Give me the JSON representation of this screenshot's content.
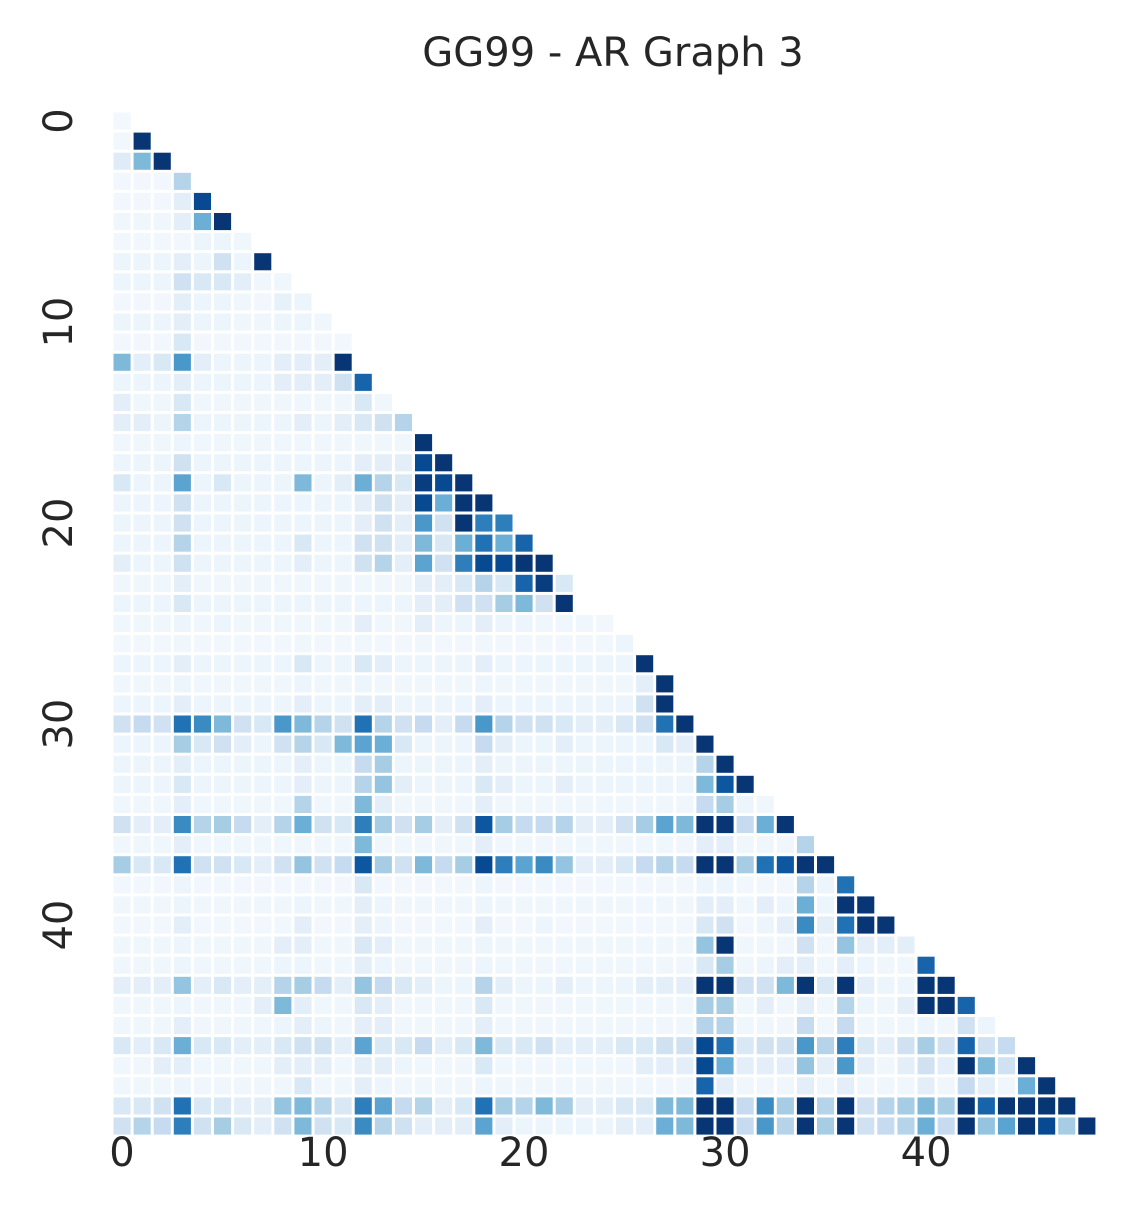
{
  "chart_data": {
    "type": "heatmap",
    "title": "GG99 - AR Graph 3",
    "n": 49,
    "mask": "lower-triangle",
    "colormap": "Blues",
    "colorbar": false,
    "x_ticks": [
      "0",
      "10",
      "20",
      "30",
      "40"
    ],
    "y_ticks": [
      "0",
      "10",
      "20",
      "30",
      "40"
    ],
    "xlabel": "",
    "ylabel": "",
    "value_scale": "0 = lightest, 1 = darkest (estimated intensity)",
    "rows": [
      [
        0.02
      ],
      [
        0.03,
        0.98
      ],
      [
        0.12,
        0.45,
        0.98
      ],
      [
        0.03,
        0.03,
        0.03,
        0.3
      ],
      [
        0.03,
        0.03,
        0.03,
        0.1,
        0.9
      ],
      [
        0.04,
        0.04,
        0.04,
        0.1,
        0.5,
        0.98
      ],
      [
        0.03,
        0.03,
        0.03,
        0.03,
        0.05,
        0.05,
        0.04
      ],
      [
        0.05,
        0.05,
        0.05,
        0.1,
        0.05,
        0.2,
        0.05,
        0.98
      ],
      [
        0.05,
        0.05,
        0.05,
        0.2,
        0.15,
        0.15,
        0.1,
        0.04,
        0.04
      ],
      [
        0.03,
        0.03,
        0.03,
        0.1,
        0.05,
        0.05,
        0.04,
        0.03,
        0.08,
        0.05
      ],
      [
        0.05,
        0.05,
        0.05,
        0.1,
        0.05,
        0.05,
        0.04,
        0.04,
        0.05,
        0.05,
        0.04
      ],
      [
        0.03,
        0.03,
        0.03,
        0.15,
        0.03,
        0.03,
        0.03,
        0.03,
        0.03,
        0.03,
        0.03,
        0.03
      ],
      [
        0.45,
        0.1,
        0.15,
        0.6,
        0.1,
        0.05,
        0.05,
        0.05,
        0.1,
        0.1,
        0.1,
        0.98
      ],
      [
        0.05,
        0.05,
        0.05,
        0.1,
        0.05,
        0.05,
        0.05,
        0.05,
        0.1,
        0.1,
        0.1,
        0.2,
        0.8
      ],
      [
        0.1,
        0.04,
        0.04,
        0.15,
        0.04,
        0.04,
        0.04,
        0.04,
        0.04,
        0.04,
        0.04,
        0.04,
        0.15,
        0.04
      ],
      [
        0.1,
        0.1,
        0.05,
        0.3,
        0.05,
        0.05,
        0.05,
        0.05,
        0.05,
        0.1,
        0.05,
        0.1,
        0.15,
        0.2,
        0.3
      ],
      [
        0.04,
        0.04,
        0.04,
        0.05,
        0.04,
        0.04,
        0.04,
        0.04,
        0.04,
        0.04,
        0.04,
        0.04,
        0.04,
        0.04,
        0.04,
        0.98
      ],
      [
        0.05,
        0.05,
        0.05,
        0.2,
        0.05,
        0.05,
        0.05,
        0.05,
        0.05,
        0.05,
        0.05,
        0.05,
        0.1,
        0.1,
        0.1,
        0.9,
        0.98
      ],
      [
        0.15,
        0.05,
        0.05,
        0.55,
        0.05,
        0.15,
        0.05,
        0.05,
        0.05,
        0.45,
        0.05,
        0.1,
        0.5,
        0.3,
        0.15,
        0.95,
        0.9,
        0.98
      ],
      [
        0.05,
        0.05,
        0.05,
        0.2,
        0.05,
        0.05,
        0.05,
        0.05,
        0.05,
        0.05,
        0.05,
        0.05,
        0.1,
        0.2,
        0.1,
        0.9,
        0.5,
        0.98,
        0.98
      ],
      [
        0.05,
        0.05,
        0.05,
        0.2,
        0.05,
        0.05,
        0.05,
        0.05,
        0.05,
        0.05,
        0.05,
        0.05,
        0.1,
        0.2,
        0.1,
        0.6,
        0.2,
        0.98,
        0.7,
        0.7
      ],
      [
        0.05,
        0.05,
        0.05,
        0.3,
        0.05,
        0.05,
        0.05,
        0.05,
        0.05,
        0.15,
        0.05,
        0.05,
        0.2,
        0.2,
        0.1,
        0.45,
        0.15,
        0.5,
        0.75,
        0.5,
        0.8
      ],
      [
        0.1,
        0.05,
        0.05,
        0.2,
        0.05,
        0.05,
        0.05,
        0.05,
        0.05,
        0.1,
        0.05,
        0.05,
        0.2,
        0.3,
        0.1,
        0.55,
        0.2,
        0.7,
        0.9,
        0.9,
        0.98,
        0.98
      ],
      [
        0.04,
        0.04,
        0.04,
        0.1,
        0.04,
        0.04,
        0.04,
        0.04,
        0.04,
        0.04,
        0.04,
        0.04,
        0.04,
        0.04,
        0.04,
        0.1,
        0.1,
        0.15,
        0.3,
        0.15,
        0.8,
        0.95,
        0.15
      ],
      [
        0.05,
        0.05,
        0.05,
        0.15,
        0.05,
        0.05,
        0.05,
        0.05,
        0.05,
        0.05,
        0.05,
        0.05,
        0.05,
        0.05,
        0.05,
        0.1,
        0.1,
        0.2,
        0.2,
        0.35,
        0.45,
        0.2,
        0.98
      ],
      [
        0.04,
        0.04,
        0.04,
        0.05,
        0.04,
        0.05,
        0.04,
        0.04,
        0.04,
        0.04,
        0.04,
        0.04,
        0.1,
        0.04,
        0.04,
        0.1,
        0.05,
        0.05,
        0.1,
        0.05,
        0.05,
        0.04,
        0.04,
        0.04,
        0.03
      ],
      [
        0.03,
        0.03,
        0.03,
        0.04,
        0.03,
        0.03,
        0.03,
        0.03,
        0.03,
        0.04,
        0.03,
        0.03,
        0.04,
        0.03,
        0.03,
        0.04,
        0.03,
        0.03,
        0.04,
        0.03,
        0.03,
        0.03,
        0.03,
        0.03,
        0.03,
        0.05
      ],
      [
        0.05,
        0.05,
        0.05,
        0.1,
        0.05,
        0.05,
        0.05,
        0.05,
        0.05,
        0.15,
        0.05,
        0.05,
        0.15,
        0.1,
        0.05,
        0.05,
        0.05,
        0.05,
        0.1,
        0.05,
        0.05,
        0.05,
        0.05,
        0.05,
        0.05,
        0.05,
        0.98
      ],
      [
        0.04,
        0.04,
        0.04,
        0.05,
        0.04,
        0.04,
        0.04,
        0.04,
        0.04,
        0.05,
        0.04,
        0.04,
        0.05,
        0.04,
        0.04,
        0.04,
        0.04,
        0.04,
        0.05,
        0.04,
        0.04,
        0.04,
        0.04,
        0.04,
        0.04,
        0.04,
        0.1,
        0.98
      ],
      [
        0.05,
        0.05,
        0.05,
        0.1,
        0.05,
        0.05,
        0.05,
        0.05,
        0.05,
        0.1,
        0.05,
        0.05,
        0.1,
        0.1,
        0.05,
        0.05,
        0.05,
        0.05,
        0.1,
        0.05,
        0.05,
        0.05,
        0.05,
        0.05,
        0.05,
        0.05,
        0.2,
        0.98
      ],
      [
        0.2,
        0.25,
        0.2,
        0.75,
        0.65,
        0.45,
        0.2,
        0.15,
        0.6,
        0.45,
        0.3,
        0.2,
        0.75,
        0.3,
        0.2,
        0.25,
        0.1,
        0.25,
        0.6,
        0.3,
        0.2,
        0.2,
        0.15,
        0.1,
        0.1,
        0.15,
        0.2,
        0.75,
        0.98
      ],
      [
        0.05,
        0.05,
        0.05,
        0.35,
        0.15,
        0.2,
        0.1,
        0.05,
        0.2,
        0.3,
        0.15,
        0.45,
        0.55,
        0.5,
        0.15,
        0.05,
        0.05,
        0.05,
        0.25,
        0.1,
        0.05,
        0.05,
        0.1,
        0.05,
        0.05,
        0.05,
        0.05,
        0.15,
        0.1,
        0.98
      ],
      [
        0.05,
        0.05,
        0.05,
        0.1,
        0.05,
        0.05,
        0.05,
        0.05,
        0.05,
        0.1,
        0.05,
        0.05,
        0.25,
        0.35,
        0.05,
        0.05,
        0.05,
        0.05,
        0.1,
        0.05,
        0.05,
        0.05,
        0.05,
        0.05,
        0.05,
        0.05,
        0.05,
        0.05,
        0.05,
        0.3,
        0.98
      ],
      [
        0.05,
        0.05,
        0.05,
        0.15,
        0.05,
        0.05,
        0.05,
        0.05,
        0.05,
        0.1,
        0.05,
        0.05,
        0.3,
        0.4,
        0.1,
        0.05,
        0.05,
        0.05,
        0.15,
        0.1,
        0.05,
        0.05,
        0.1,
        0.05,
        0.05,
        0.05,
        0.05,
        0.05,
        0.05,
        0.45,
        0.85,
        0.98
      ],
      [
        0.04,
        0.04,
        0.04,
        0.1,
        0.04,
        0.04,
        0.04,
        0.04,
        0.04,
        0.3,
        0.04,
        0.04,
        0.45,
        0.1,
        0.04,
        0.04,
        0.04,
        0.04,
        0.1,
        0.04,
        0.04,
        0.04,
        0.04,
        0.04,
        0.04,
        0.04,
        0.04,
        0.04,
        0.04,
        0.25,
        0.35,
        0.05,
        0.04
      ],
      [
        0.2,
        0.1,
        0.1,
        0.65,
        0.3,
        0.35,
        0.25,
        0.1,
        0.3,
        0.5,
        0.2,
        0.15,
        0.7,
        0.35,
        0.2,
        0.35,
        0.1,
        0.2,
        0.85,
        0.35,
        0.25,
        0.25,
        0.3,
        0.1,
        0.1,
        0.2,
        0.35,
        0.55,
        0.45,
        0.98,
        0.98,
        0.25,
        0.5,
        0.98
      ],
      [
        0.04,
        0.04,
        0.04,
        0.1,
        0.04,
        0.04,
        0.04,
        0.04,
        0.04,
        0.04,
        0.04,
        0.04,
        0.45,
        0.04,
        0.04,
        0.04,
        0.04,
        0.04,
        0.1,
        0.04,
        0.04,
        0.04,
        0.04,
        0.04,
        0.04,
        0.04,
        0.04,
        0.04,
        0.04,
        0.1,
        0.1,
        0.04,
        0.04,
        0.04,
        0.3
      ],
      [
        0.35,
        0.15,
        0.15,
        0.75,
        0.2,
        0.2,
        0.15,
        0.1,
        0.2,
        0.4,
        0.2,
        0.25,
        0.85,
        0.35,
        0.2,
        0.45,
        0.25,
        0.35,
        0.9,
        0.7,
        0.55,
        0.65,
        0.4,
        0.1,
        0.1,
        0.15,
        0.25,
        0.3,
        0.25,
        0.98,
        0.98,
        0.35,
        0.75,
        0.85,
        0.98,
        0.98
      ],
      [
        0.03,
        0.03,
        0.03,
        0.05,
        0.03,
        0.03,
        0.03,
        0.03,
        0.03,
        0.03,
        0.03,
        0.03,
        0.15,
        0.03,
        0.03,
        0.03,
        0.03,
        0.03,
        0.05,
        0.03,
        0.03,
        0.03,
        0.03,
        0.03,
        0.03,
        0.03,
        0.03,
        0.03,
        0.03,
        0.05,
        0.05,
        0.03,
        0.03,
        0.03,
        0.3,
        0.05,
        0.75
      ],
      [
        0.04,
        0.04,
        0.04,
        0.05,
        0.04,
        0.04,
        0.04,
        0.04,
        0.04,
        0.05,
        0.04,
        0.04,
        0.1,
        0.05,
        0.04,
        0.04,
        0.04,
        0.04,
        0.05,
        0.04,
        0.04,
        0.04,
        0.04,
        0.04,
        0.04,
        0.04,
        0.04,
        0.04,
        0.04,
        0.1,
        0.1,
        0.04,
        0.1,
        0.05,
        0.5,
        0.05,
        0.98,
        0.98
      ],
      [
        0.03,
        0.03,
        0.03,
        0.1,
        0.03,
        0.03,
        0.03,
        0.03,
        0.03,
        0.1,
        0.03,
        0.03,
        0.1,
        0.05,
        0.03,
        0.03,
        0.03,
        0.03,
        0.1,
        0.03,
        0.03,
        0.05,
        0.03,
        0.03,
        0.03,
        0.03,
        0.03,
        0.03,
        0.03,
        0.15,
        0.2,
        0.03,
        0.05,
        0.1,
        0.65,
        0.1,
        0.75,
        0.98,
        0.98
      ],
      [
        0.04,
        0.04,
        0.04,
        0.05,
        0.04,
        0.04,
        0.04,
        0.04,
        0.1,
        0.1,
        0.04,
        0.04,
        0.15,
        0.1,
        0.04,
        0.04,
        0.04,
        0.04,
        0.05,
        0.04,
        0.04,
        0.04,
        0.04,
        0.04,
        0.04,
        0.04,
        0.04,
        0.04,
        0.04,
        0.4,
        0.98,
        0.04,
        0.04,
        0.04,
        0.2,
        0.04,
        0.4,
        0.1,
        0.1,
        0.1
      ],
      [
        0.04,
        0.04,
        0.04,
        0.05,
        0.04,
        0.04,
        0.04,
        0.04,
        0.05,
        0.05,
        0.04,
        0.04,
        0.1,
        0.05,
        0.04,
        0.04,
        0.04,
        0.04,
        0.05,
        0.04,
        0.04,
        0.04,
        0.04,
        0.04,
        0.04,
        0.04,
        0.04,
        0.04,
        0.04,
        0.15,
        0.35,
        0.04,
        0.05,
        0.1,
        0.1,
        0.04,
        0.1,
        0.05,
        0.04,
        0.04,
        0.8
      ],
      [
        0.1,
        0.1,
        0.1,
        0.4,
        0.1,
        0.15,
        0.1,
        0.1,
        0.3,
        0.35,
        0.25,
        0.1,
        0.4,
        0.25,
        0.15,
        0.1,
        0.05,
        0.05,
        0.3,
        0.1,
        0.05,
        0.05,
        0.1,
        0.05,
        0.05,
        0.05,
        0.1,
        0.1,
        0.1,
        0.98,
        0.98,
        0.2,
        0.2,
        0.45,
        0.98,
        0.15,
        0.98,
        0.1,
        0.05,
        0.05,
        0.98,
        0.98
      ],
      [
        0.04,
        0.04,
        0.04,
        0.05,
        0.04,
        0.04,
        0.04,
        0.1,
        0.45,
        0.1,
        0.04,
        0.04,
        0.15,
        0.1,
        0.04,
        0.04,
        0.04,
        0.04,
        0.15,
        0.04,
        0.04,
        0.04,
        0.04,
        0.04,
        0.04,
        0.04,
        0.04,
        0.04,
        0.04,
        0.35,
        0.35,
        0.04,
        0.1,
        0.04,
        0.1,
        0.04,
        0.3,
        0.05,
        0.04,
        0.1,
        0.98,
        0.98,
        0.8
      ],
      [
        0.04,
        0.04,
        0.04,
        0.1,
        0.04,
        0.04,
        0.04,
        0.04,
        0.05,
        0.1,
        0.05,
        0.04,
        0.1,
        0.1,
        0.04,
        0.04,
        0.04,
        0.04,
        0.1,
        0.04,
        0.04,
        0.04,
        0.04,
        0.04,
        0.04,
        0.04,
        0.04,
        0.04,
        0.04,
        0.3,
        0.3,
        0.04,
        0.04,
        0.04,
        0.25,
        0.04,
        0.25,
        0.04,
        0.04,
        0.04,
        0.05,
        0.04,
        0.2,
        0.05
      ],
      [
        0.15,
        0.1,
        0.15,
        0.5,
        0.15,
        0.15,
        0.1,
        0.1,
        0.15,
        0.2,
        0.2,
        0.1,
        0.55,
        0.15,
        0.15,
        0.25,
        0.1,
        0.15,
        0.45,
        0.15,
        0.15,
        0.2,
        0.1,
        0.1,
        0.1,
        0.15,
        0.15,
        0.2,
        0.2,
        0.9,
        0.75,
        0.15,
        0.2,
        0.2,
        0.6,
        0.3,
        0.7,
        0.15,
        0.1,
        0.2,
        0.35,
        0.2,
        0.8,
        0.2,
        0.25
      ],
      [
        0.04,
        0.04,
        0.1,
        0.1,
        0.04,
        0.04,
        0.04,
        0.04,
        0.1,
        0.1,
        0.1,
        0.04,
        0.1,
        0.1,
        0.05,
        0.04,
        0.04,
        0.04,
        0.15,
        0.04,
        0.04,
        0.04,
        0.04,
        0.04,
        0.04,
        0.04,
        0.1,
        0.1,
        0.1,
        0.9,
        0.5,
        0.1,
        0.1,
        0.1,
        0.4,
        0.1,
        0.6,
        0.1,
        0.04,
        0.1,
        0.2,
        0.1,
        0.98,
        0.45,
        0.2,
        0.98
      ],
      [
        0.04,
        0.04,
        0.04,
        0.05,
        0.04,
        0.04,
        0.04,
        0.04,
        0.04,
        0.15,
        0.04,
        0.04,
        0.1,
        0.05,
        0.04,
        0.04,
        0.04,
        0.04,
        0.05,
        0.04,
        0.04,
        0.04,
        0.04,
        0.04,
        0.04,
        0.04,
        0.04,
        0.04,
        0.04,
        0.8,
        0.1,
        0.04,
        0.04,
        0.04,
        0.1,
        0.04,
        0.1,
        0.04,
        0.04,
        0.04,
        0.1,
        0.04,
        0.25,
        0.1,
        0.04,
        0.5,
        0.98
      ],
      [
        0.15,
        0.15,
        0.2,
        0.75,
        0.15,
        0.15,
        0.1,
        0.1,
        0.4,
        0.45,
        0.3,
        0.15,
        0.7,
        0.55,
        0.25,
        0.3,
        0.1,
        0.15,
        0.75,
        0.35,
        0.3,
        0.45,
        0.35,
        0.1,
        0.1,
        0.15,
        0.15,
        0.45,
        0.45,
        0.98,
        0.98,
        0.25,
        0.65,
        0.35,
        0.98,
        0.3,
        0.98,
        0.2,
        0.3,
        0.35,
        0.45,
        0.35,
        0.98,
        0.8,
        0.98,
        0.98,
        0.98,
        0.98
      ],
      [
        0.2,
        0.3,
        0.25,
        0.7,
        0.2,
        0.35,
        0.15,
        0.1,
        0.2,
        0.45,
        0.2,
        0.15,
        0.65,
        0.3,
        0.2,
        0.1,
        0.1,
        0.1,
        0.55,
        0.1,
        0.05,
        0.05,
        0.05,
        0.05,
        0.05,
        0.1,
        0.1,
        0.5,
        0.45,
        0.98,
        0.98,
        0.25,
        0.6,
        0.3,
        0.98,
        0.35,
        0.98,
        0.2,
        0.25,
        0.3,
        0.5,
        0.25,
        0.98,
        0.4,
        0.55,
        0.98,
        0.9,
        0.35,
        0.98
      ]
    ]
  }
}
